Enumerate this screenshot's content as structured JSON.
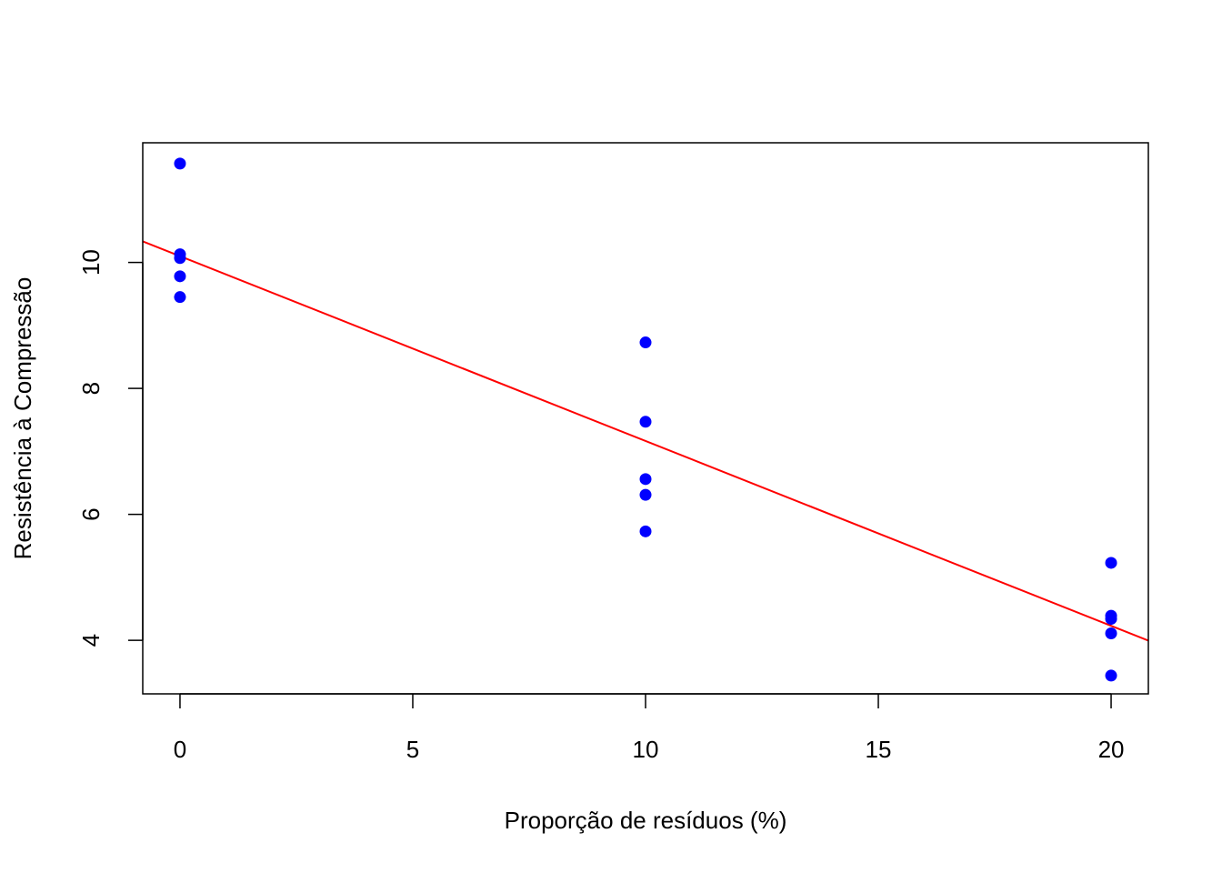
{
  "chart_data": {
    "type": "scatter",
    "title": "",
    "xlabel": "Proporção de resíduos (%)",
    "ylabel": "Resistência à Compressão",
    "xlim": [
      -0.8,
      20.8
    ],
    "ylim": [
      3.15,
      11.9
    ],
    "x_ticks": [
      0,
      5,
      10,
      15,
      20
    ],
    "x_tick_labels": [
      "0",
      "5",
      "10",
      "15",
      "20"
    ],
    "y_ticks": [
      4,
      6,
      8,
      10
    ],
    "y_tick_labels": [
      "4",
      "6",
      "8",
      "10"
    ],
    "grid": false,
    "series": [
      {
        "type": "scatter",
        "color": "#0000FF",
        "points": [
          {
            "x": 0,
            "y": 11.57
          },
          {
            "x": 0,
            "y": 10.13
          },
          {
            "x": 0,
            "y": 10.07
          },
          {
            "x": 0,
            "y": 9.78
          },
          {
            "x": 0,
            "y": 9.45
          },
          {
            "x": 10,
            "y": 8.73
          },
          {
            "x": 10,
            "y": 7.47
          },
          {
            "x": 10,
            "y": 6.56
          },
          {
            "x": 10,
            "y": 6.31
          },
          {
            "x": 10,
            "y": 5.73
          },
          {
            "x": 20,
            "y": 5.23
          },
          {
            "x": 20,
            "y": 4.39
          },
          {
            "x": 20,
            "y": 4.34
          },
          {
            "x": 20,
            "y": 4.11
          },
          {
            "x": 20,
            "y": 3.44
          }
        ]
      },
      {
        "type": "line",
        "color": "#FF0000",
        "intercept": 10.1,
        "slope": -0.2935
      }
    ]
  }
}
